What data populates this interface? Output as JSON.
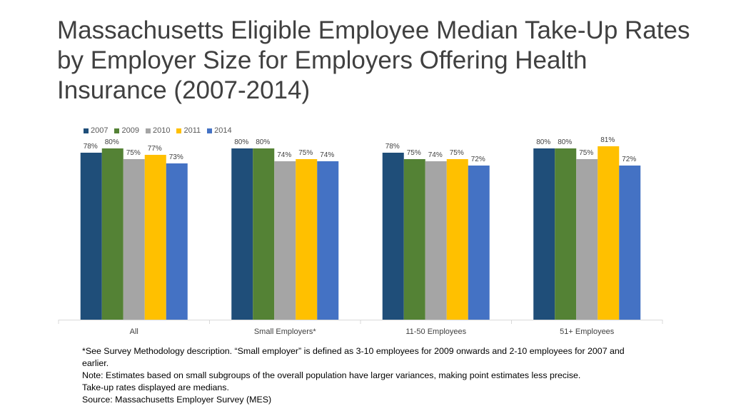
{
  "title": "Massachusetts Eligible Employee Median Take-Up Rates by Employer Size for Employers Offering Health Insurance (2007-2014)",
  "colors": {
    "2007": "#1f4e79",
    "2009": "#548235",
    "2010": "#a5a5a5",
    "2011": "#ffc000",
    "2014": "#4472c4"
  },
  "chart_data": {
    "type": "bar",
    "categories": [
      "All",
      "Small Employers*",
      "11-50 Employees",
      "51+ Employees"
    ],
    "series": [
      {
        "name": "2007",
        "values": [
          78,
          80,
          78,
          80
        ],
        "labels": [
          "78%",
          "80%",
          "78%",
          "80%"
        ]
      },
      {
        "name": "2009",
        "values": [
          80,
          80,
          75,
          80
        ],
        "labels": [
          "80%",
          "80%",
          "75%",
          "80%"
        ]
      },
      {
        "name": "2010",
        "values": [
          75,
          74,
          74,
          75
        ],
        "labels": [
          "75%",
          "74%",
          "74%",
          "75%"
        ]
      },
      {
        "name": "2011",
        "values": [
          77,
          75,
          75,
          81
        ],
        "labels": [
          "77%",
          "75%",
          "75%",
          "81%"
        ]
      },
      {
        "name": "2014",
        "values": [
          73,
          74,
          72,
          72
        ],
        "labels": [
          "73%",
          "74%",
          "72%",
          "72%"
        ]
      }
    ],
    "ylim": [
      0,
      100
    ],
    "legend_position": "top-left",
    "grid": false
  },
  "footnotes": [
    "*See Survey Methodology description. “Small employer” is defined as 3-10 employees for 2009 onwards and 2-10 employees for 2007 and earlier.",
    "Note: Estimates based on small subgroups of the overall population have larger variances, making point estimates less precise.",
    "Take-up rates displayed are medians.",
    "Source: Massachusetts Employer Survey (MES)"
  ]
}
